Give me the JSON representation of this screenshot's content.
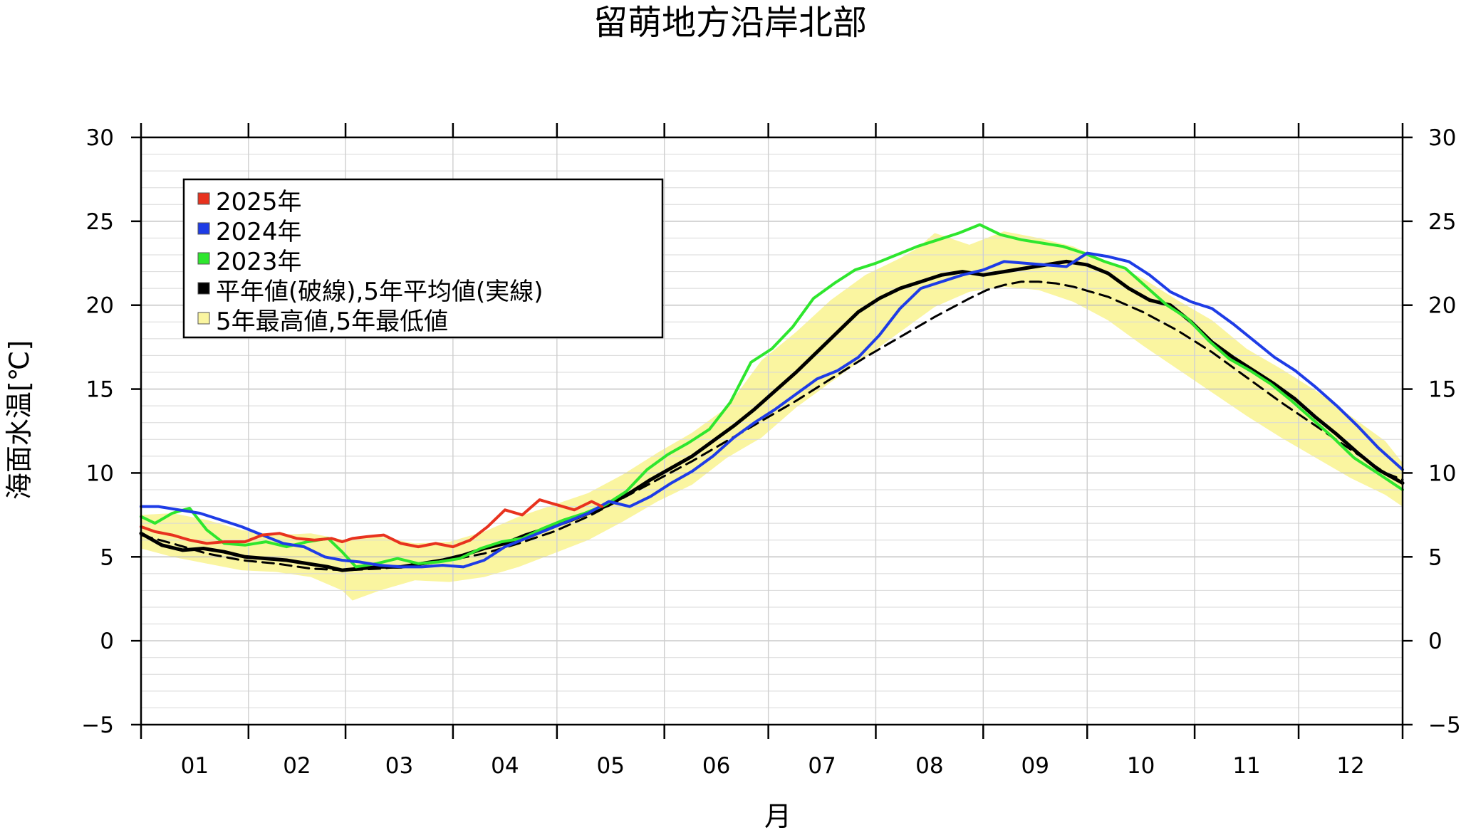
{
  "chart_data": {
    "type": "line",
    "title": "留萌地方沿岸北部",
    "xlabel": "月",
    "ylabel": "海面水温[℃]",
    "ylim": [
      -5,
      30
    ],
    "yticks": [
      -5,
      0,
      5,
      10,
      15,
      20,
      25,
      30
    ],
    "ytick_labels": [
      "−5",
      "0",
      "5",
      "10",
      "15",
      "20",
      "25",
      "30"
    ],
    "month_labels": [
      "01",
      "02",
      "03",
      "04",
      "05",
      "06",
      "07",
      "08",
      "09",
      "10",
      "11",
      "12"
    ],
    "grid": true,
    "legend_position": "top-left",
    "legend": [
      {
        "label": "2025年",
        "color": "#e8321e"
      },
      {
        "label": "2024年",
        "color": "#1e3ce6"
      },
      {
        "label": "2023年",
        "color": "#2ee62e"
      },
      {
        "label": "平年値(破線),5年平均値(実線)",
        "color": "#000000"
      },
      {
        "label": "5年最高値,5年最低値",
        "color": "#faf5a0"
      }
    ],
    "series": [
      {
        "name": "2025年",
        "color": "#e8321e",
        "x": [
          1,
          5,
          10,
          15,
          20,
          25,
          31,
          36,
          41,
          46,
          51,
          56,
          59,
          62,
          66,
          71,
          76,
          81,
          86,
          91,
          96,
          101,
          106,
          111,
          116,
          121,
          126,
          131,
          134
        ],
        "y": [
          6.8,
          6.5,
          6.3,
          6.0,
          5.8,
          5.9,
          5.9,
          6.3,
          6.4,
          6.1,
          6.0,
          6.1,
          5.9,
          6.1,
          6.2,
          6.3,
          5.8,
          5.6,
          5.8,
          5.6,
          6.0,
          6.8,
          7.8,
          7.5,
          8.4,
          8.1,
          7.8,
          8.3,
          8.0
        ]
      },
      {
        "name": "2024年",
        "color": "#1e3ce6",
        "x": [
          1,
          6,
          12,
          18,
          24,
          30,
          36,
          42,
          48,
          54,
          59,
          64,
          70,
          76,
          82,
          88,
          94,
          100,
          106,
          112,
          118,
          124,
          130,
          136,
          142,
          148,
          154,
          160,
          166,
          172,
          178,
          184,
          190,
          196,
          202,
          208,
          214,
          220,
          226,
          232,
          238,
          244,
          250,
          256,
          262,
          268,
          274,
          280,
          286,
          292,
          298,
          304,
          310,
          316,
          322,
          328,
          334,
          340,
          346,
          352,
          358,
          365
        ],
        "y": [
          8.0,
          8.0,
          7.8,
          7.6,
          7.2,
          6.8,
          6.3,
          5.8,
          5.6,
          5.0,
          4.8,
          4.7,
          4.5,
          4.4,
          4.4,
          4.5,
          4.4,
          4.8,
          5.6,
          6.1,
          6.6,
          7.1,
          7.6,
          8.3,
          8.0,
          8.6,
          9.4,
          10.1,
          11.0,
          12.1,
          13.0,
          13.8,
          14.7,
          15.6,
          16.1,
          16.9,
          18.2,
          19.8,
          21.0,
          21.4,
          21.8,
          22.1,
          22.6,
          22.5,
          22.4,
          22.3,
          23.1,
          22.9,
          22.6,
          21.8,
          20.8,
          20.2,
          19.8,
          18.9,
          17.9,
          16.9,
          16.1,
          15.1,
          14.0,
          12.8,
          11.5,
          10.2
        ]
      },
      {
        "name": "2023年",
        "color": "#2ee62e",
        "x": [
          1,
          5,
          10,
          15,
          20,
          25,
          31,
          37,
          43,
          49,
          55,
          59,
          63,
          69,
          75,
          81,
          87,
          93,
          99,
          105,
          111,
          117,
          123,
          129,
          135,
          141,
          147,
          153,
          159,
          165,
          171,
          177,
          183,
          189,
          195,
          201,
          207,
          213,
          219,
          225,
          231,
          237,
          243,
          249,
          255,
          261,
          267,
          273,
          279,
          285,
          291,
          297,
          303,
          309,
          315,
          321,
          327,
          333,
          339,
          345,
          351,
          357,
          365
        ],
        "y": [
          7.4,
          7.0,
          7.6,
          7.9,
          6.6,
          5.8,
          5.7,
          5.9,
          5.6,
          5.9,
          6.1,
          5.3,
          4.4,
          4.6,
          4.9,
          4.6,
          4.7,
          4.9,
          5.5,
          5.9,
          6.1,
          6.7,
          7.2,
          7.6,
          8.1,
          8.9,
          10.2,
          11.1,
          11.8,
          12.6,
          14.2,
          16.6,
          17.4,
          18.7,
          20.4,
          21.3,
          22.1,
          22.5,
          23.0,
          23.5,
          23.9,
          24.3,
          24.8,
          24.2,
          23.9,
          23.7,
          23.5,
          23.1,
          22.6,
          22.2,
          21.1,
          20.0,
          19.2,
          17.9,
          16.8,
          16.1,
          15.3,
          14.3,
          13.2,
          12.1,
          10.9,
          10.1,
          9.0
        ]
      },
      {
        "name": "5年平均値",
        "color": "#000000",
        "x": [
          1,
          7,
          13,
          19,
          25,
          31,
          37,
          43,
          49,
          55,
          59,
          64,
          70,
          76,
          82,
          88,
          94,
          100,
          106,
          112,
          118,
          124,
          130,
          136,
          142,
          148,
          154,
          160,
          166,
          172,
          178,
          184,
          190,
          196,
          202,
          208,
          214,
          220,
          226,
          232,
          238,
          244,
          250,
          256,
          262,
          268,
          274,
          280,
          286,
          292,
          298,
          304,
          310,
          316,
          322,
          328,
          334,
          340,
          346,
          352,
          358,
          365
        ],
        "y": [
          6.4,
          5.7,
          5.4,
          5.5,
          5.3,
          5.0,
          4.9,
          4.8,
          4.6,
          4.4,
          4.2,
          4.3,
          4.4,
          4.4,
          4.6,
          4.8,
          5.1,
          5.5,
          5.8,
          6.3,
          6.7,
          7.1,
          7.6,
          8.1,
          8.8,
          9.6,
          10.3,
          11.0,
          11.9,
          12.8,
          13.8,
          14.9,
          16.0,
          17.2,
          18.4,
          19.6,
          20.4,
          21.0,
          21.4,
          21.8,
          22.0,
          21.8,
          22.0,
          22.2,
          22.4,
          22.6,
          22.4,
          21.9,
          21.0,
          20.3,
          20.0,
          19.0,
          17.8,
          16.9,
          16.1,
          15.3,
          14.4,
          13.3,
          12.3,
          11.2,
          10.2,
          9.4
        ]
      },
      {
        "name": "平年値",
        "color": "#000000",
        "dashed": true,
        "x": [
          1,
          10,
          20,
          30,
          40,
          50,
          60,
          70,
          80,
          90,
          100,
          110,
          120,
          130,
          140,
          150,
          160,
          170,
          180,
          190,
          200,
          210,
          220,
          230,
          240,
          245,
          250,
          255,
          260,
          265,
          270,
          280,
          290,
          300,
          310,
          320,
          330,
          340,
          350,
          360,
          365
        ],
        "y": [
          6.3,
          5.8,
          5.2,
          4.8,
          4.6,
          4.3,
          4.2,
          4.3,
          4.5,
          4.8,
          5.2,
          5.8,
          6.5,
          7.4,
          8.5,
          9.6,
          10.7,
          11.9,
          13.1,
          14.3,
          15.6,
          16.9,
          18.1,
          19.3,
          20.4,
          20.9,
          21.2,
          21.4,
          21.4,
          21.3,
          21.1,
          20.5,
          19.6,
          18.5,
          17.2,
          15.7,
          14.2,
          12.8,
          11.4,
          10.0,
          9.6
        ]
      },
      {
        "name": "5年最高値",
        "color": "#faf5a0",
        "x": [
          1,
          10,
          20,
          30,
          40,
          50,
          60,
          70,
          80,
          90,
          100,
          110,
          120,
          130,
          140,
          150,
          160,
          170,
          180,
          190,
          200,
          210,
          220,
          225,
          230,
          240,
          250,
          260,
          270,
          280,
          290,
          300,
          310,
          320,
          330,
          340,
          350,
          360,
          365
        ],
        "y": [
          7.5,
          7.6,
          7.2,
          6.6,
          6.3,
          6.4,
          6.0,
          6.2,
          5.8,
          5.9,
          6.5,
          7.4,
          8.1,
          8.8,
          9.9,
          11.2,
          12.4,
          13.9,
          16.7,
          18.4,
          20.3,
          21.8,
          22.8,
          23.4,
          24.3,
          23.6,
          24.4,
          24.0,
          23.5,
          22.6,
          21.6,
          20.3,
          19.1,
          17.4,
          16.2,
          14.9,
          13.4,
          11.9,
          10.6
        ]
      },
      {
        "name": "5年最低値",
        "color": "#faf5a0",
        "x": [
          1,
          10,
          20,
          30,
          40,
          50,
          59,
          62,
          70,
          80,
          90,
          100,
          110,
          120,
          130,
          140,
          150,
          160,
          170,
          180,
          190,
          200,
          210,
          220,
          230,
          240,
          250,
          260,
          270,
          280,
          290,
          300,
          310,
          320,
          330,
          340,
          350,
          360,
          365
        ],
        "y": [
          5.5,
          5.0,
          4.6,
          4.2,
          4.1,
          3.8,
          3.0,
          2.4,
          3.0,
          3.6,
          3.5,
          3.8,
          4.4,
          5.2,
          6.0,
          7.1,
          8.3,
          9.3,
          10.9,
          12.1,
          13.9,
          15.4,
          16.9,
          18.4,
          19.9,
          20.8,
          21.1,
          20.9,
          20.2,
          19.1,
          17.6,
          16.2,
          14.8,
          13.4,
          12.1,
          10.9,
          9.7,
          8.7,
          8.0
        ]
      }
    ]
  }
}
